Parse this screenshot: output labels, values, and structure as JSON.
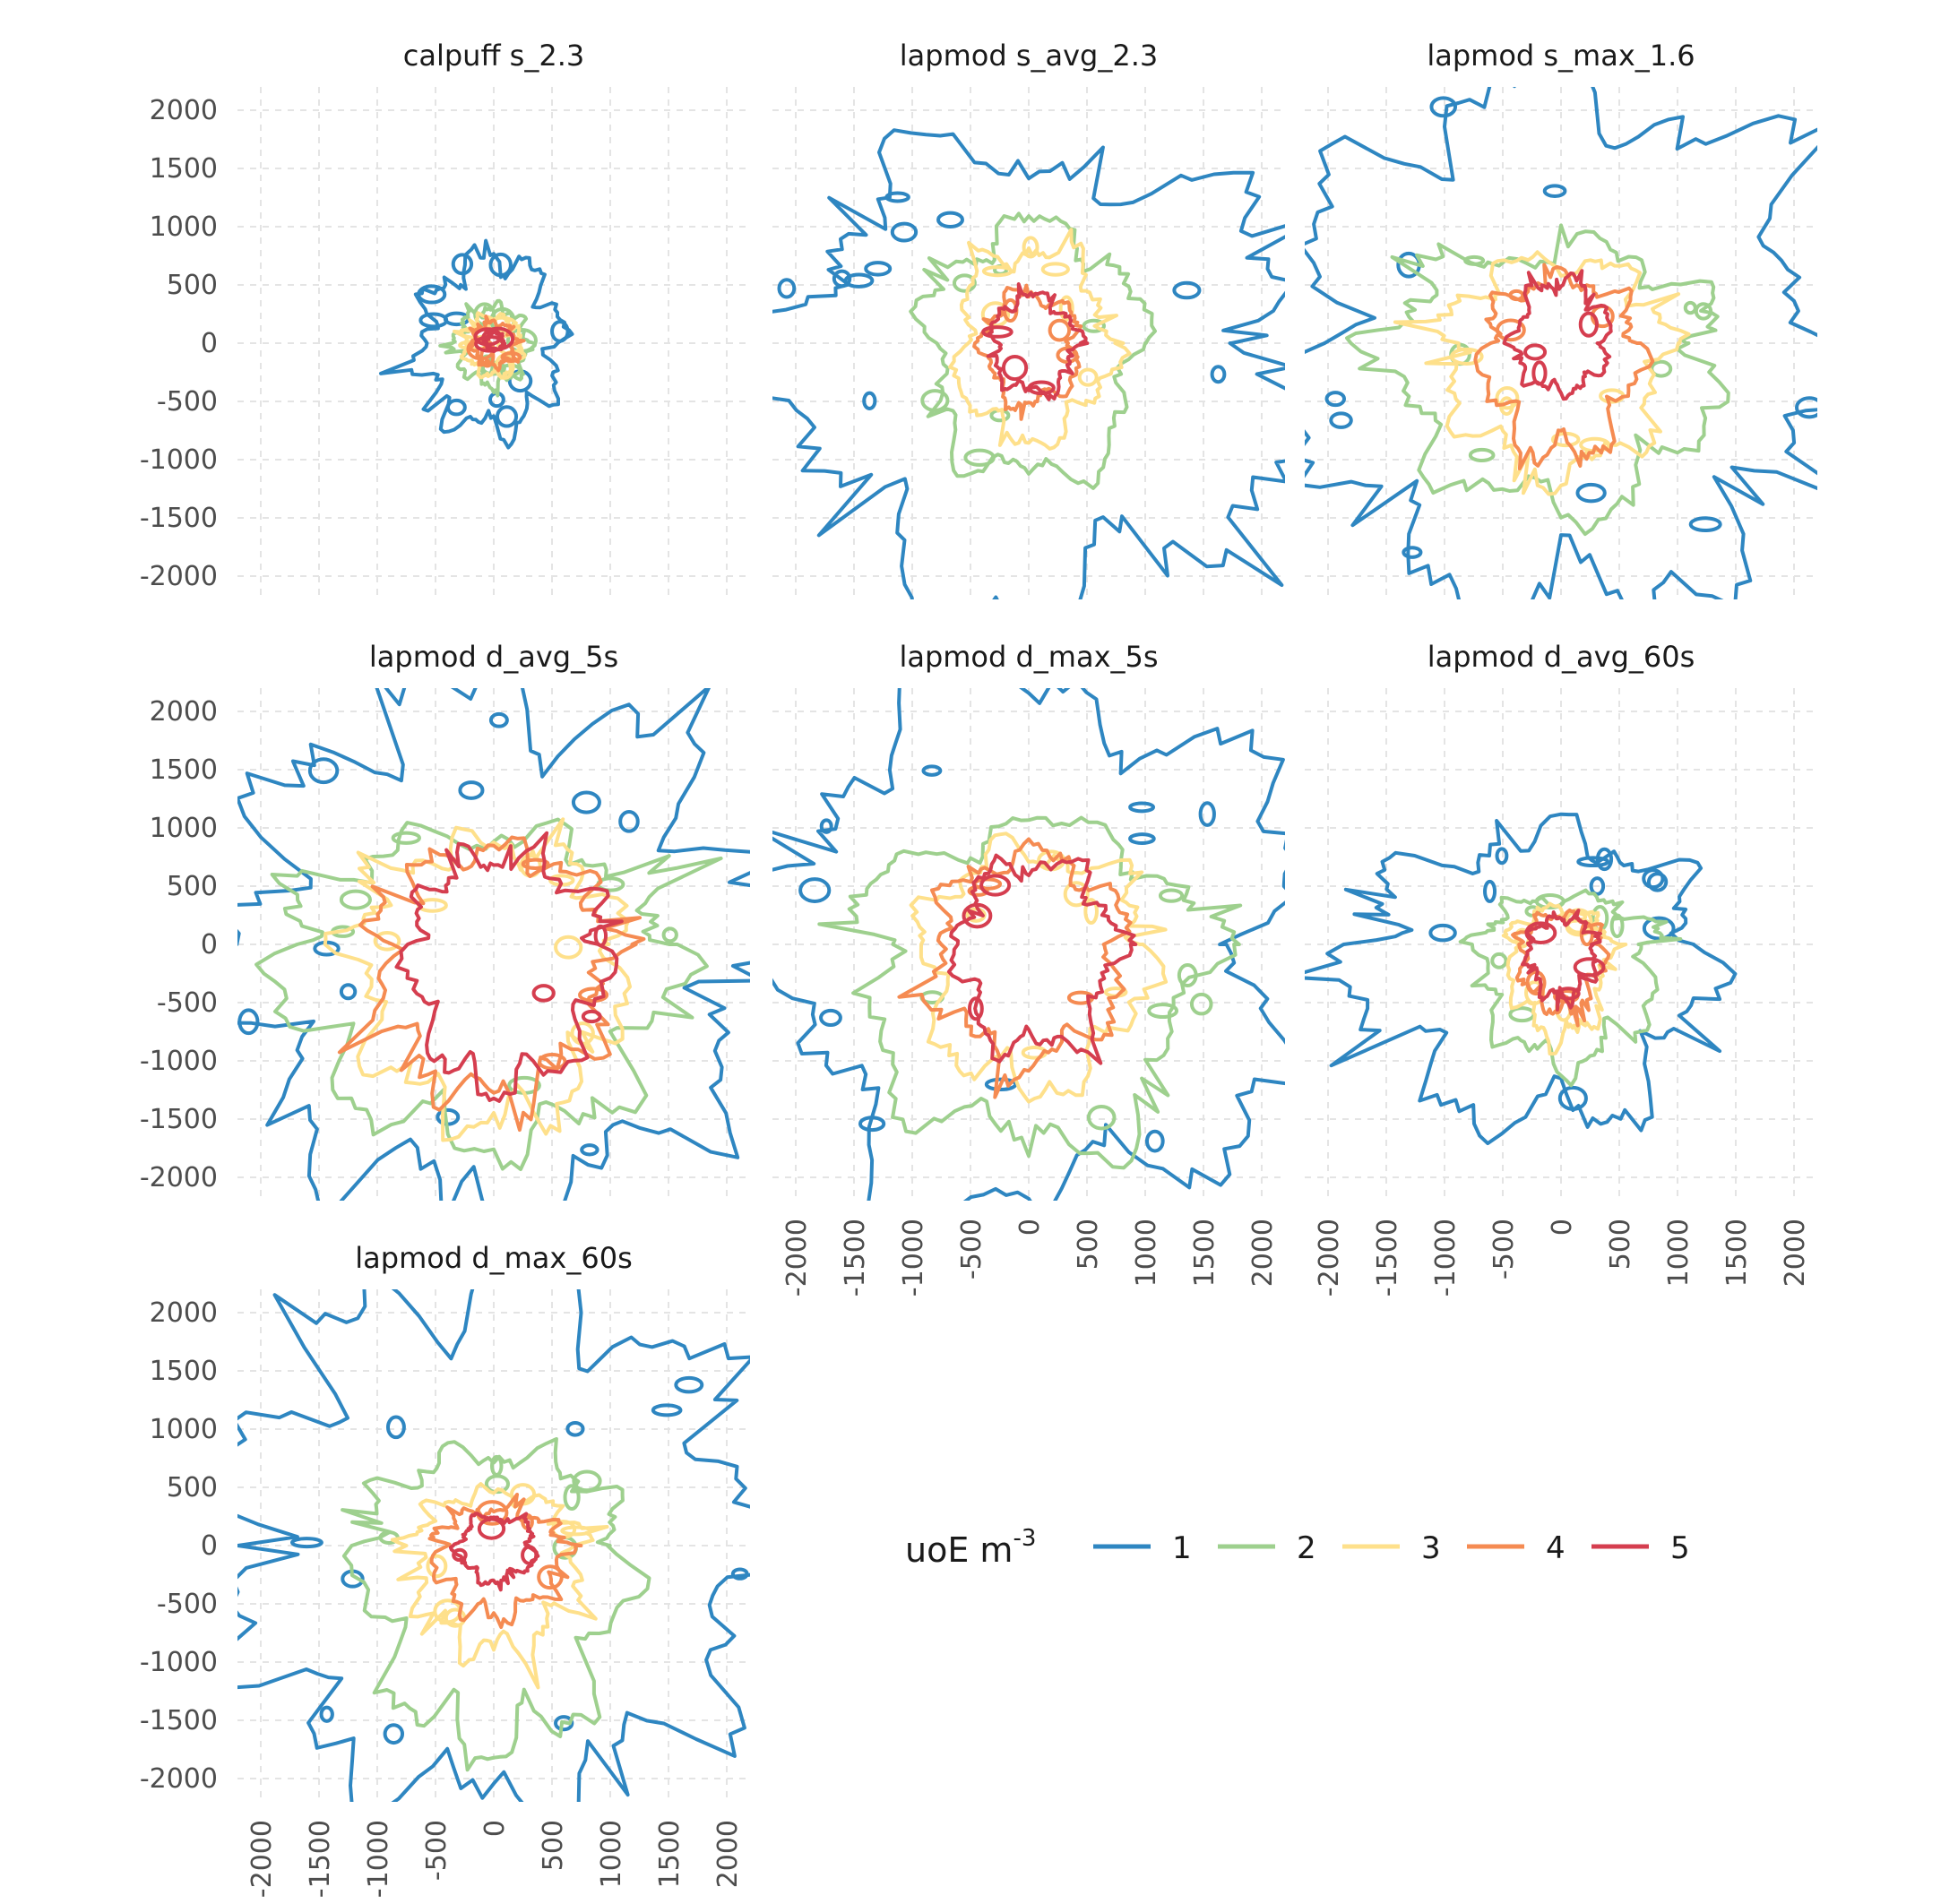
{
  "chart_data": {
    "type": "contour",
    "title": "",
    "xlabel": "",
    "ylabel": "",
    "xlim": [
      -2200,
      2200
    ],
    "ylim": [
      -2200,
      2200
    ],
    "x_ticks": [
      -2000,
      -1500,
      -1000,
      -500,
      0,
      500,
      1000,
      1500,
      2000
    ],
    "y_ticks": [
      -2000,
      -1500,
      -1000,
      -500,
      0,
      500,
      1000,
      1500,
      2000
    ],
    "grid": true,
    "grid_style": "dashed",
    "legend": {
      "title": "uoE m",
      "title_superscript": "-3",
      "position": "lower-right",
      "levels": [
        {
          "label": "1",
          "color": "#2E86C1"
        },
        {
          "label": "2",
          "color": "#9ED08E"
        },
        {
          "label": "3",
          "color": "#FEE08B"
        },
        {
          "label": "4",
          "color": "#F58B52"
        },
        {
          "label": "5",
          "color": "#D53E4F"
        }
      ]
    },
    "panels": [
      {
        "title": "calpuff s_2.3",
        "contours": [
          {
            "level": 1,
            "radius": 700,
            "cx": 0,
            "cy": 0,
            "extent": [
              -620,
              560,
              -730,
              720
            ]
          },
          {
            "level": 2,
            "radius": 330,
            "cx": -20,
            "cy": -20,
            "extent": [
              -320,
              290,
              -350,
              300
            ]
          },
          {
            "level": 3,
            "radius": 250,
            "cx": -10,
            "cy": -10,
            "extent": [
              -250,
              220,
              -270,
              230
            ]
          },
          {
            "level": 4,
            "radius": 180,
            "cx": 0,
            "cy": 0,
            "extent": [
              -180,
              180,
              -190,
              170
            ]
          },
          {
            "level": 5,
            "radius": 70,
            "cx": 0,
            "cy": 20,
            "extent": [
              -60,
              80,
              -60,
              100
            ]
          }
        ]
      },
      {
        "title": "lapmod s_avg_2.3",
        "contours": [
          {
            "level": 1,
            "radius": 1450,
            "cx": 0,
            "cy": 0,
            "extent": [
              -2100,
              2200,
              -2200,
              1600
            ]
          },
          {
            "level": 2,
            "radius": 850,
            "cx": 0,
            "cy": -50,
            "extent": [
              -850,
              950,
              -1150,
              1000
            ]
          },
          {
            "level": 3,
            "radius": 600,
            "cx": 0,
            "cy": -50,
            "extent": [
              -600,
              700,
              -800,
              800
            ]
          },
          {
            "level": 4,
            "radius": 380,
            "cx": 0,
            "cy": -50,
            "extent": [
              -380,
              420,
              -520,
              420
            ]
          },
          {
            "level": 5,
            "radius": 280,
            "cx": 0,
            "cy": -50,
            "extent": [
              -300,
              400,
              -420,
              400
            ]
          }
        ]
      },
      {
        "title": "lapmod s_max_1.6",
        "contours": [
          {
            "level": 1,
            "radius": 2300,
            "cx": 0,
            "cy": 0,
            "extent": [
              -2200,
              2200,
              -2200,
              2200
            ]
          },
          {
            "level": 2,
            "radius": 1100,
            "cx": 0,
            "cy": 0,
            "extent": [
              -1500,
              1300,
              -1400,
              800
            ]
          },
          {
            "level": 3,
            "radius": 750,
            "cx": 0,
            "cy": -100,
            "extent": [
              -1000,
              900,
              -1100,
              700
            ]
          },
          {
            "level": 4,
            "radius": 550,
            "cx": 0,
            "cy": -150,
            "extent": [
              -650,
              650,
              -950,
              550
            ]
          },
          {
            "level": 5,
            "radius": 380,
            "cx": 0,
            "cy": 0,
            "extent": [
              -400,
              400,
              -400,
              520
            ]
          }
        ]
      },
      {
        "title": "lapmod d_avg_5s",
        "contours": [
          {
            "level": 1,
            "radius": 1700,
            "cx": 0,
            "cy": 0,
            "extent": [
              -2200,
              2200,
              -2200,
              2100
            ]
          },
          {
            "level": 2,
            "radius": 950,
            "cx": 0,
            "cy": -100,
            "extent": [
              -1800,
              1500,
              -1700,
              950
            ]
          },
          {
            "level": 3,
            "radius": 850,
            "cx": 0,
            "cy": -100,
            "extent": [
              -1200,
              1100,
              -1500,
              850
            ]
          },
          {
            "level": 4,
            "radius": 780,
            "cx": 0,
            "cy": -150,
            "extent": [
              -1000,
              1000,
              -1300,
              800
            ]
          },
          {
            "level": 5,
            "radius": 700,
            "cx": 0,
            "cy": -100,
            "extent": [
              -700,
              950,
              -1200,
              750
            ]
          }
        ]
      },
      {
        "title": "lapmod d_max_5s",
        "contours": [
          {
            "level": 1,
            "radius": 2200,
            "cx": 0,
            "cy": 0,
            "extent": [
              -2200,
              2200,
              -2200,
              2200
            ]
          },
          {
            "level": 2,
            "radius": 1300,
            "cx": 0,
            "cy": -200,
            "extent": [
              -1400,
              1500,
              -1700,
              1000
            ]
          },
          {
            "level": 3,
            "radius": 900,
            "cx": 0,
            "cy": -200,
            "extent": [
              -900,
              1000,
              -1200,
              800
            ]
          },
          {
            "level": 4,
            "radius": 750,
            "cx": 0,
            "cy": -200,
            "extent": [
              -800,
              800,
              -1000,
              750
            ]
          },
          {
            "level": 5,
            "radius": 600,
            "cx": 0,
            "cy": -200,
            "extent": [
              -600,
              750,
              -900,
              700
            ]
          }
        ]
      },
      {
        "title": "lapmod d_avg_60s",
        "contours": [
          {
            "level": 1,
            "radius": 900,
            "cx": 0,
            "cy": -100,
            "extent": [
              -1700,
              1200,
              -1500,
              900
            ]
          },
          {
            "level": 2,
            "radius": 600,
            "cx": 0,
            "cy": -100,
            "extent": [
              -700,
              800,
              -1000,
              400
            ]
          },
          {
            "level": 3,
            "radius": 450,
            "cx": 0,
            "cy": -100,
            "extent": [
              -450,
              400,
              -800,
              300
            ]
          },
          {
            "level": 4,
            "radius": 350,
            "cx": 0,
            "cy": -100,
            "extent": [
              -350,
              350,
              -550,
              250
            ]
          },
          {
            "level": 5,
            "radius": 280,
            "cx": 0,
            "cy": -100,
            "extent": [
              -280,
              300,
              -450,
              220
            ]
          }
        ]
      },
      {
        "title": "lapmod d_max_60s",
        "contours": [
          {
            "level": 1,
            "radius": 2000,
            "cx": 0,
            "cy": -200,
            "extent": [
              -2200,
              2200,
              -2200,
              2200
            ]
          },
          {
            "level": 2,
            "radius": 1000,
            "cx": 0,
            "cy": -200,
            "extent": [
              -1100,
              1100,
              -1700,
              800
            ]
          },
          {
            "level": 3,
            "radius": 550,
            "cx": 0,
            "cy": -100,
            "extent": [
              -700,
              750,
              -900,
              450
            ]
          },
          {
            "level": 4,
            "radius": 350,
            "cx": 0,
            "cy": 0,
            "extent": [
              -500,
              600,
              -600,
              300
            ]
          },
          {
            "level": 5,
            "radius": 250,
            "cx": 0,
            "cy": 0,
            "extent": [
              -300,
              350,
              -300,
              250
            ]
          }
        ]
      }
    ]
  }
}
